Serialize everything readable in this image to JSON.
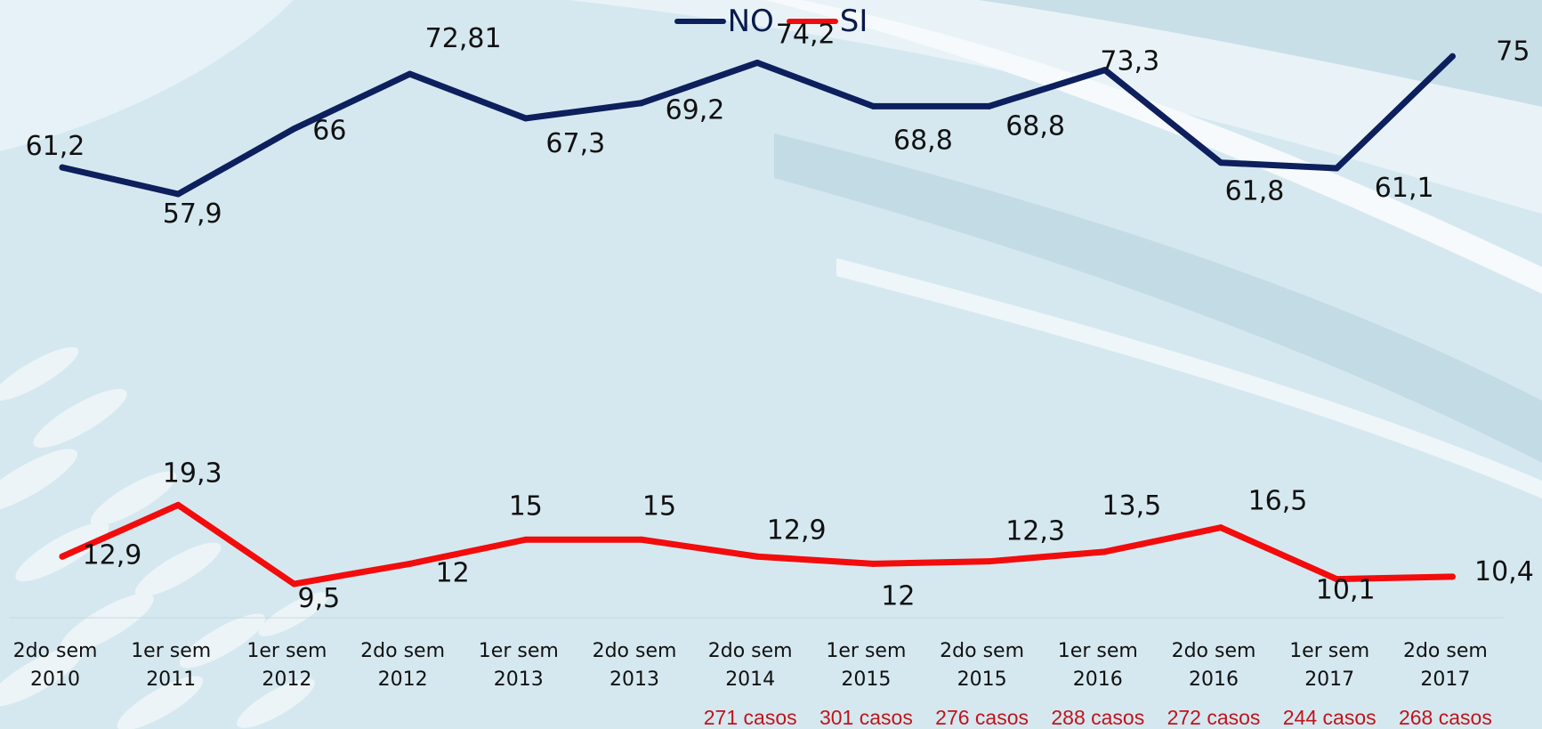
{
  "chart_data": {
    "type": "line",
    "title": "",
    "xlabel": "",
    "ylabel": "",
    "categories": [
      [
        "2do sem",
        "2010"
      ],
      [
        "1er sem",
        "2011"
      ],
      [
        "1er sem",
        "2012"
      ],
      [
        "2do sem",
        "2012"
      ],
      [
        "1er sem",
        "2013"
      ],
      [
        "2do sem",
        "2013"
      ],
      [
        "2do sem",
        "2014"
      ],
      [
        "1er sem",
        "2015"
      ],
      [
        "2do sem",
        "2015"
      ],
      [
        "1er sem",
        "2016"
      ],
      [
        "2do sem",
        "2016"
      ],
      [
        "1er sem",
        "2017"
      ],
      [
        "2do sem",
        "2017"
      ]
    ],
    "series": [
      {
        "name": "NO",
        "color": "#0d1f5c",
        "values": [
          61.2,
          57.9,
          66,
          72.81,
          67.3,
          69.2,
          74.2,
          68.8,
          68.8,
          73.3,
          61.8,
          61.1,
          75
        ],
        "labels": [
          "61,2",
          "57,9",
          "66",
          "72,81",
          "67,3",
          "69,2",
          "74,2",
          "68,8",
          "68,8",
          "73,3",
          "61,8",
          "61,1",
          "75"
        ]
      },
      {
        "name": "SI",
        "color": "#f20c0c",
        "values": [
          12.9,
          19.3,
          9.5,
          12,
          15,
          15,
          12.9,
          12,
          12.3,
          13.5,
          16.5,
          10.1,
          10.4
        ],
        "labels": [
          "12,9",
          "19,3",
          "9,5",
          "12",
          "15",
          "15",
          "12,9",
          "12",
          "12,3",
          "13,5",
          "16,5",
          "10,1",
          "10,4"
        ]
      }
    ],
    "case_counts": [
      "",
      "",
      "",
      "",
      "",
      "",
      "271 casos",
      "301 casos",
      "276 casos",
      "288 casos",
      "272 casos",
      "244 casos",
      "268 casos"
    ],
    "legend_position": "top-center",
    "grid": false,
    "gridlines": false,
    "ylim": [
      0,
      80
    ]
  }
}
